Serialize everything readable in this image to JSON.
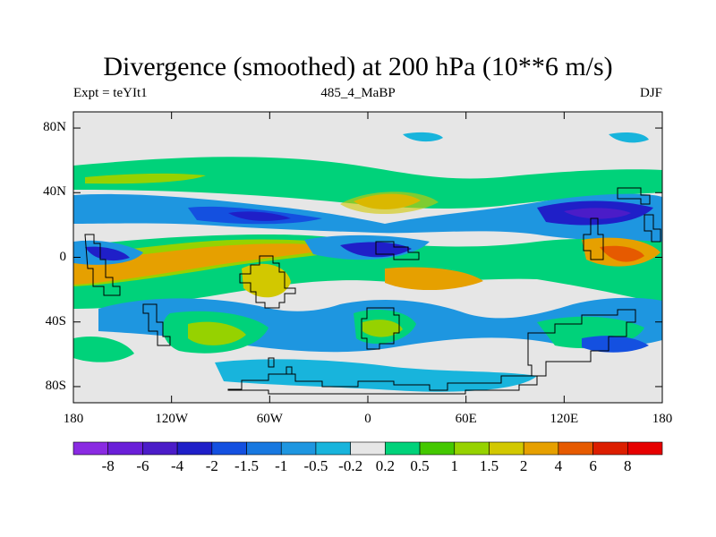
{
  "title": "Divergence (smoothed) at 200 hPa (10**6 m/s)",
  "subtitle_left": "Expt = teYIt1",
  "subtitle_center": "485_4_MaBP",
  "subtitle_right": "DJF",
  "map": {
    "lon_range": [
      -180,
      180
    ],
    "lat_range": [
      -90,
      90
    ],
    "lat_tick_labels": [
      {
        "lat": 80,
        "label": "80N"
      },
      {
        "lat": 40,
        "label": "40N"
      },
      {
        "lat": 0,
        "label": "0"
      },
      {
        "lat": -40,
        "label": "40S"
      },
      {
        "lat": -80,
        "label": "80S"
      }
    ],
    "lon_tick_labels": [
      {
        "lon": -180,
        "label": "180"
      },
      {
        "lon": -120,
        "label": "120W"
      },
      {
        "lon": -60,
        "label": "60W"
      },
      {
        "lon": 0,
        "label": "0"
      },
      {
        "lon": 60,
        "label": "60E"
      },
      {
        "lon": 120,
        "label": "120E"
      },
      {
        "lon": 180,
        "label": "180"
      }
    ]
  },
  "colorbar": {
    "labels": [
      "-8",
      "-6",
      "-4",
      "-2",
      "-1.5",
      "-1",
      "-0.5",
      "-0.2",
      "0.2",
      "0.5",
      "1",
      "1.5",
      "2",
      "4",
      "6",
      "8"
    ],
    "colors": [
      "#8a2be2",
      "#6a1fd8",
      "#4b1cc8",
      "#1f1fc8",
      "#1450e0",
      "#1878e0",
      "#1e96e0",
      "#18b4dc",
      "#e6e6e6",
      "#00d27a",
      "#44c800",
      "#96d200",
      "#d2c800",
      "#e6a000",
      "#e65a00",
      "#dc1e00",
      "#e60000"
    ]
  }
}
